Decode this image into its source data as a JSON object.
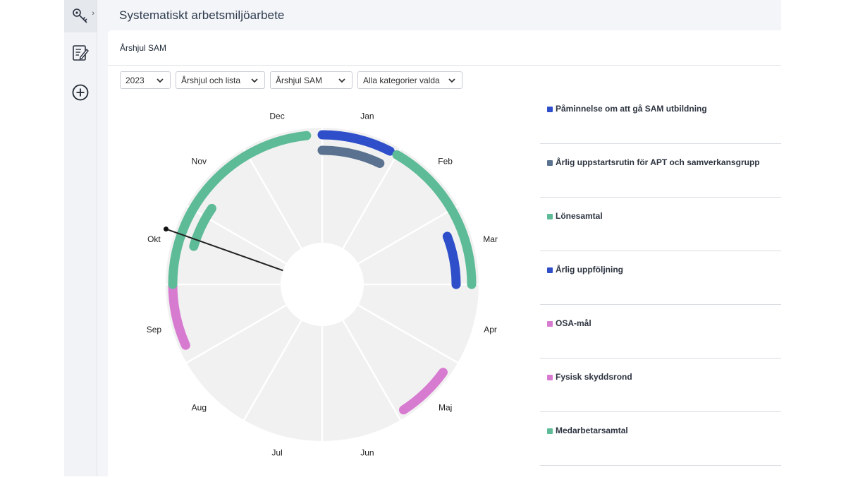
{
  "app": {
    "page_title": "Systematiskt arbetsmiljöarbete",
    "card_title": "Årshjul SAM"
  },
  "sidebar": {
    "items": [
      {
        "icon": "key-icon",
        "active": true
      },
      {
        "icon": "checklist-icon",
        "active": false
      },
      {
        "icon": "add-circle-icon",
        "active": false
      }
    ]
  },
  "filters": {
    "year": "2023",
    "view": "Årshjul och lista",
    "wheel": "Årshjul SAM",
    "categories": "Alla kategorier valda"
  },
  "wheel": {
    "months": [
      "Jan",
      "Feb",
      "Mar",
      "Apr",
      "Maj",
      "Jun",
      "Jul",
      "Aug",
      "Sep",
      "Okt",
      "Nov",
      "Dec"
    ],
    "current_month": "Okt",
    "pointer_month": 9.65
  },
  "activities": [
    {
      "name": "Påminnelse om att gå SAM utbildning",
      "color": "#2e4fc9",
      "start_month": 0.0,
      "end_month": 0.9,
      "ring": "outer"
    },
    {
      "name": "Årlig uppstartsrutin för APT och samverkansgrupp",
      "color": "#5a7290",
      "start_month": 0.0,
      "end_month": 0.85,
      "ring": "second"
    },
    {
      "name": "Lönesamtal",
      "color": "#5dbb97",
      "start_month": 1.0,
      "end_month": 3.0,
      "ring": "outer"
    },
    {
      "name": "Årlig uppföljning",
      "color": "#2e4fc9",
      "start_month": 2.3,
      "end_month": 3.0,
      "ring": "second"
    },
    {
      "name": "OSA-mål",
      "color": "#d77bd1",
      "start_month": 8.2,
      "end_month": 9.0,
      "ring": "outer"
    },
    {
      "name": "Fysisk skyddsrond",
      "color": "#d77bd1",
      "start_month": 4.2,
      "end_month": 4.9,
      "ring": "outer"
    },
    {
      "name": "Medarbetarsamtal",
      "color": "#5dbb97",
      "start_month": 9.0,
      "end_month": 11.8,
      "ring": "outer"
    },
    {
      "name": "Medarbetarsamtal",
      "color": "#5dbb97",
      "start_month": 9.55,
      "end_month": 10.15,
      "ring": "second"
    }
  ],
  "legend": [
    {
      "label": "Påminnelse om att gå SAM utbildning",
      "color": "#2e4fc9"
    },
    {
      "label": "Årlig uppstartsrutin för APT och samverkansgrupp",
      "color": "#5a7290"
    },
    {
      "label": "Lönesamtal",
      "color": "#5dbb97"
    },
    {
      "label": "Årlig uppföljning",
      "color": "#2e4fc9"
    },
    {
      "label": "OSA-mål",
      "color": "#d77bd1"
    },
    {
      "label": "Fysisk skyddsrond",
      "color": "#d77bd1"
    },
    {
      "label": "Medarbetarsamtal",
      "color": "#5dbb97"
    }
  ]
}
